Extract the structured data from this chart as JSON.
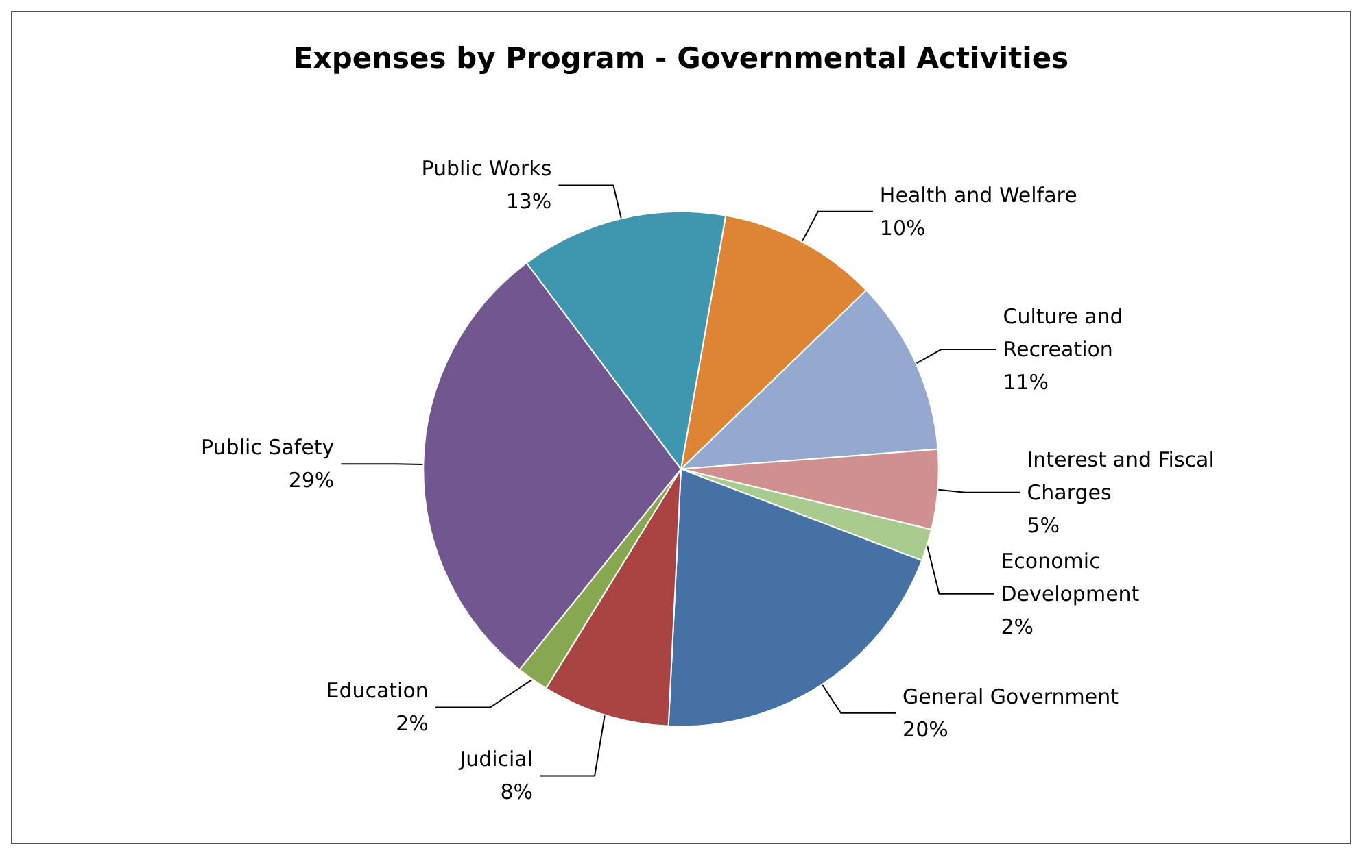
{
  "chart_data": {
    "type": "pie",
    "title": "Expenses by Program - Governmental Activities",
    "categories": [
      "Health and Welfare",
      "Culture and Recreation",
      "Interest and Fiscal Charges",
      "Economic Development",
      "General Government",
      "Judicial",
      "Education",
      "Public Safety",
      "Public Works"
    ],
    "values": [
      10,
      11,
      5,
      2,
      20,
      8,
      2,
      29,
      13
    ],
    "value_labels": [
      "10%",
      "11%",
      "5%",
      "2%",
      "20%",
      "8%",
      "2%",
      "29%",
      "13%"
    ],
    "colors": [
      "#dd8535",
      "#93a9cf",
      "#d09090",
      "#a9cb8e",
      "#4571a5",
      "#a94442",
      "#87a850",
      "#71568f",
      "#3e97ae"
    ],
    "legend": false
  }
}
